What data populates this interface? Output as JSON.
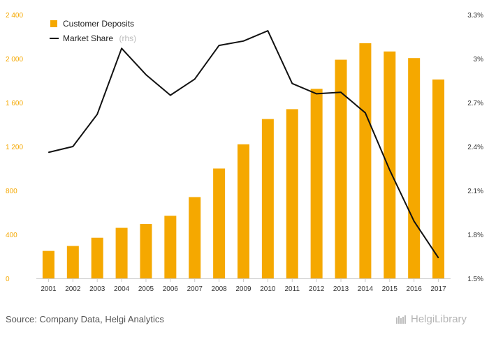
{
  "chart_data": {
    "type": "bar+line",
    "categories": [
      "2001",
      "2002",
      "2003",
      "2004",
      "2005",
      "2006",
      "2007",
      "2008",
      "2009",
      "2010",
      "2011",
      "2012",
      "2013",
      "2014",
      "2015",
      "2016",
      "2017"
    ],
    "series": [
      {
        "name": "Customer Deposits",
        "type": "bar",
        "axis": "left",
        "color": "#f5a800",
        "values": [
          250,
          295,
          370,
          460,
          495,
          570,
          740,
          1000,
          1220,
          1450,
          1540,
          1725,
          1990,
          2140,
          2065,
          2005,
          1810
        ]
      },
      {
        "name": "Market Share",
        "legend_note": "(rhs)",
        "type": "line",
        "axis": "right",
        "color": "#111111",
        "values": [
          2.36,
          2.4,
          2.62,
          3.07,
          2.89,
          2.75,
          2.86,
          3.09,
          3.12,
          3.19,
          2.83,
          2.76,
          2.77,
          2.63,
          2.24,
          1.89,
          1.64
        ]
      }
    ],
    "y_left": {
      "ticks": [
        0,
        400,
        800,
        1200,
        1600,
        2000,
        2400
      ],
      "tick_labels": [
        "0",
        "400",
        "800",
        "1 200",
        "1 600",
        "2 000",
        "2 400"
      ],
      "range": [
        0,
        2400
      ]
    },
    "y_right": {
      "ticks": [
        1.5,
        1.8,
        2.1,
        2.4,
        2.7,
        3.0,
        3.3
      ],
      "tick_labels": [
        "1.5%",
        "1.8%",
        "2.1%",
        "2.4%",
        "2.7%",
        "3%",
        "3.3%"
      ],
      "range": [
        1.5,
        3.3
      ]
    },
    "grid": false,
    "legend_position": "top-left"
  },
  "footer": {
    "source": "Source: Company Data, Helgi Analytics",
    "brand": "HelgiLibrary"
  }
}
